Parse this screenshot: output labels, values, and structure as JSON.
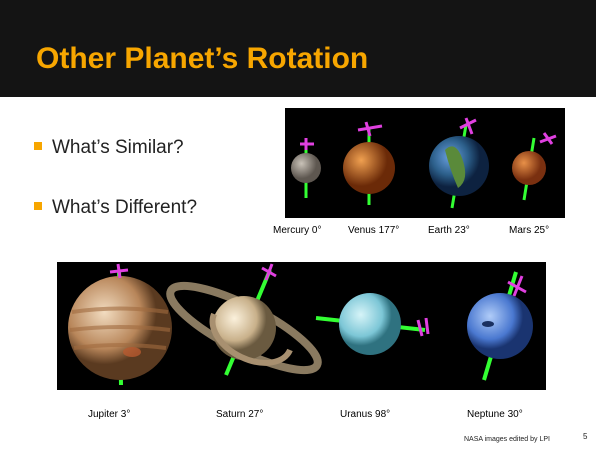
{
  "header": {
    "title": "Other Planet’s Rotation"
  },
  "bullets": [
    "What’s Similar?",
    "What’s Different?"
  ],
  "inner_planets": [
    "Mercury 0°",
    "Venus  177°",
    "Earth 23°",
    "Mars 25°"
  ],
  "outer_planets": [
    "Jupiter 3°",
    "Saturn 27°",
    "Uranus 98°",
    "Neptune 30°"
  ],
  "footer": {
    "credit": "NASA images edited by LPI",
    "page": "5"
  }
}
